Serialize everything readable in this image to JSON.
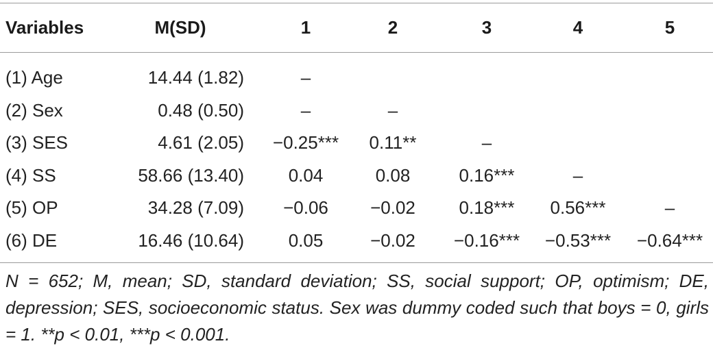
{
  "table": {
    "headers": [
      "Variables",
      "M(SD)",
      "1",
      "2",
      "3",
      "4",
      "5"
    ],
    "rows": [
      {
        "variable": "(1) Age",
        "msd": "14.44 (1.82)",
        "c1": "–",
        "c2": "",
        "c3": "",
        "c4": "",
        "c5": ""
      },
      {
        "variable": "(2) Sex",
        "msd": "0.48 (0.50)",
        "c1": "–",
        "c2": "–",
        "c3": "",
        "c4": "",
        "c5": ""
      },
      {
        "variable": "(3) SES",
        "msd": "4.61 (2.05)",
        "c1": "−0.25***",
        "c2": "0.11**",
        "c3": "–",
        "c4": "",
        "c5": ""
      },
      {
        "variable": "(4) SS",
        "msd": "58.66 (13.40)",
        "c1": "0.04",
        "c2": "0.08",
        "c3": "0.16***",
        "c4": "–",
        "c5": ""
      },
      {
        "variable": "(5) OP",
        "msd": "34.28 (7.09)",
        "c1": "−0.06",
        "c2": "−0.02",
        "c3": "0.18***",
        "c4": "0.56***",
        "c5": "–"
      },
      {
        "variable": "(6) DE",
        "msd": "16.46 (10.64)",
        "c1": "0.05",
        "c2": "−0.02",
        "c3": "−0.16***",
        "c4": "−0.53***",
        "c5": "−0.64***"
      }
    ]
  },
  "note": "N = 652; M, mean; SD, standard deviation; SS, social support; OP, optimism; DE, depression; SES, socioeconomic status. Sex was dummy coded such that boys = 0, girls = 1. **p < 0.01, ***p < 0.001."
}
